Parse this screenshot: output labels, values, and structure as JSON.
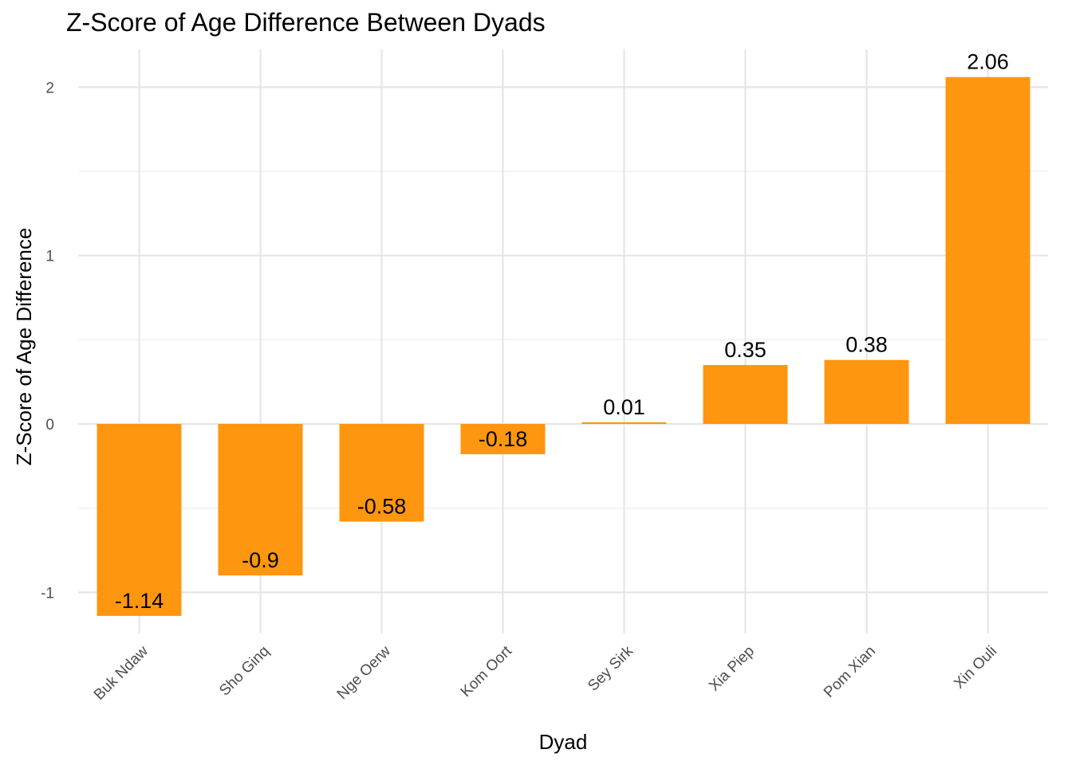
{
  "colors": {
    "bar": "#FF960F",
    "grid": "#E5E5E5",
    "text": "#000000",
    "tick_text": "#4D4D4D"
  },
  "chart_data": {
    "type": "bar",
    "title": "Z-Score of Age Difference Between Dyads",
    "xlabel": "Dyad",
    "ylabel": "Z-Score of Age Difference",
    "categories": [
      "Buk Ndaw",
      "Sho Ginq",
      "Nge Oerw",
      "Kom Oort",
      "Sey Sirk",
      "Xia Piep",
      "Pom Xian",
      "Xin Ouli"
    ],
    "values": [
      -1.14,
      -0.9,
      -0.58,
      -0.18,
      0.01,
      0.35,
      0.38,
      2.06
    ],
    "data_labels": [
      "-1.14",
      "-0.9",
      "-0.58",
      "-0.18",
      "0.01",
      "0.35",
      "0.38",
      "2.06"
    ],
    "yticks": [
      -1,
      0,
      1,
      2
    ],
    "ytick_labels": [
      "-1",
      "0",
      "1",
      "2"
    ],
    "ylim": [
      -1.24,
      2.23
    ],
    "grid": true,
    "legend": "none"
  }
}
